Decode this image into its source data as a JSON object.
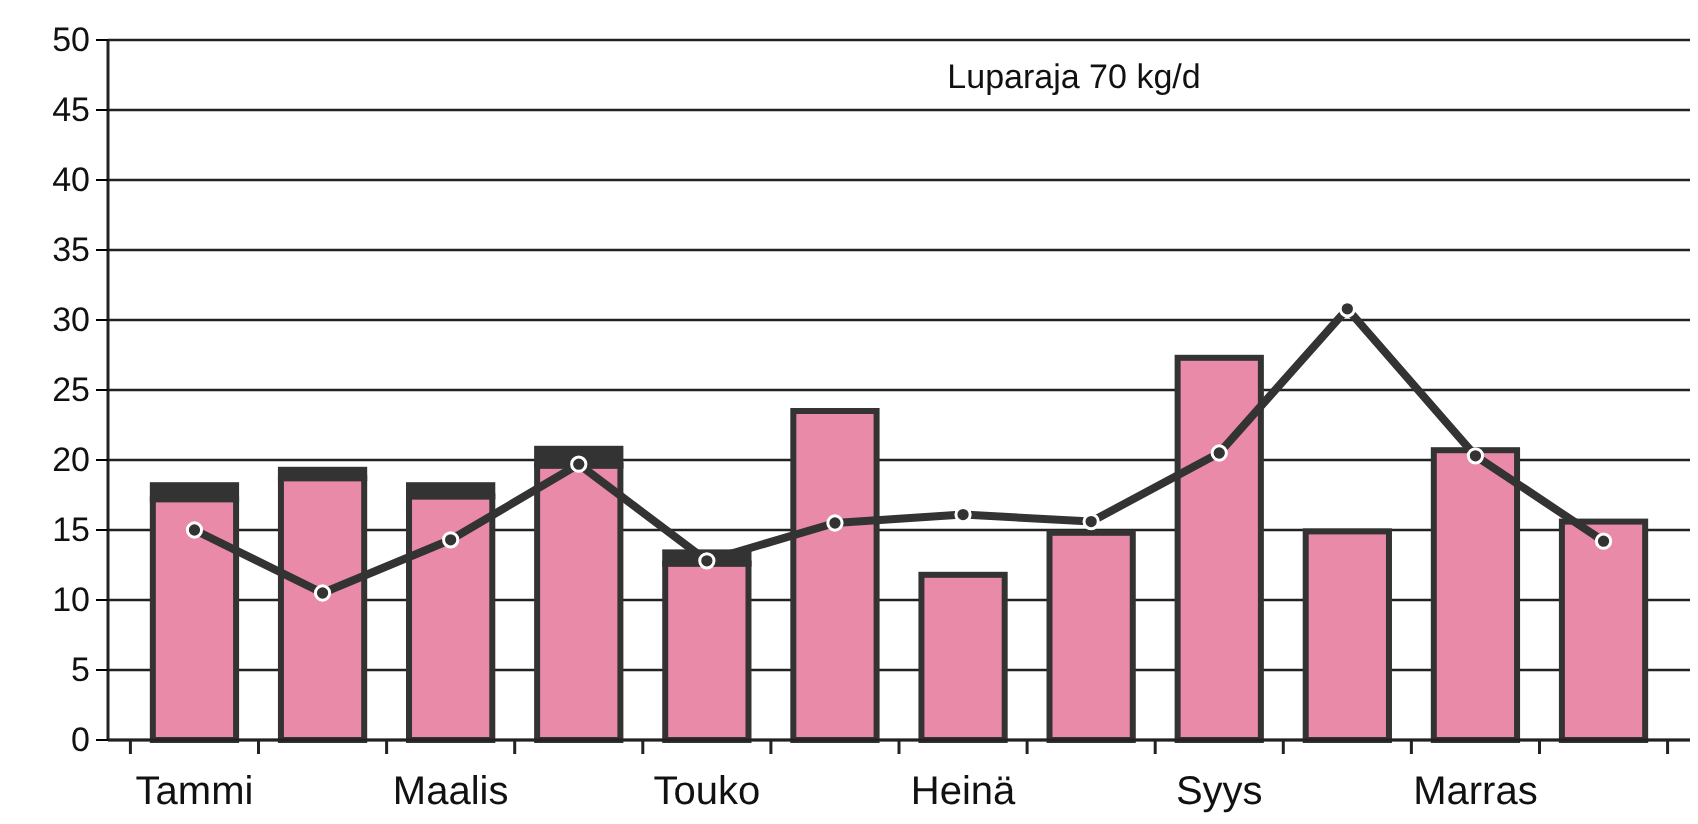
{
  "chart_data": {
    "type": "bar",
    "stacked": true,
    "categories": [
      "Tammi",
      null,
      "Maalis",
      null,
      "Touko",
      null,
      "Heinä",
      null,
      "Syys",
      null,
      "Marras",
      null
    ],
    "series": [
      {
        "color": "#e98aa8",
        "values": [
          17.2,
          18.7,
          17.4,
          19.6,
          12.6,
          23.5,
          11.8,
          14.8,
          27.3,
          14.9,
          20.7,
          15.6
        ]
      },
      {
        "color": "#333333",
        "values": [
          1.0,
          0.6,
          0.8,
          1.2,
          0.8,
          0,
          0,
          0,
          0,
          0,
          0,
          0
        ]
      },
      {
        "type": "line",
        "color": "#333333",
        "values": [
          15,
          10.5,
          14.3,
          19.7,
          12.8,
          15.5,
          16.1,
          15.6,
          20.5,
          30.8,
          20.3,
          14.2
        ]
      }
    ],
    "ylim": [
      0,
      50
    ],
    "yticks": [
      0,
      5,
      10,
      15,
      20,
      25,
      30,
      35,
      40,
      45,
      50
    ],
    "grid": "y",
    "marker": "circle",
    "annotations": [
      {
        "text": "Luparaja 70 kg/d"
      }
    ]
  }
}
